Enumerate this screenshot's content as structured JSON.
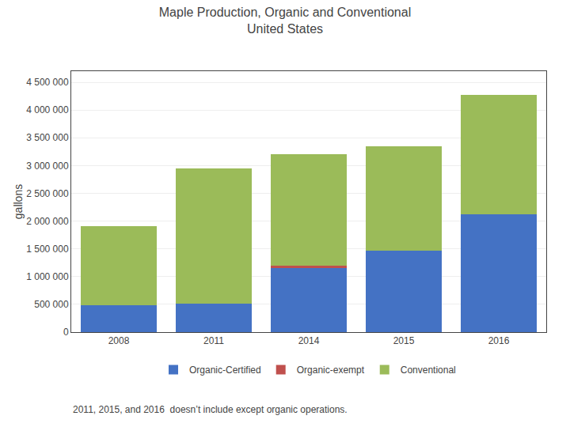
{
  "chart_data": {
    "type": "bar",
    "title": "Maple Production, Organic and Conventional\nUnited States",
    "categories": [
      "2008",
      "2011",
      "2014",
      "2015",
      "2016"
    ],
    "series": [
      {
        "name": "Organic-Certified",
        "color": "#4472C4",
        "values": [
          480000,
          510000,
          1150000,
          1470000,
          2120000
        ]
      },
      {
        "name": "Organic-exempt",
        "color": "#C0504D",
        "values": [
          0,
          0,
          50000,
          0,
          0
        ]
      },
      {
        "name": "Conventional",
        "color": "#9BBB59",
        "values": [
          1430000,
          2440000,
          2010000,
          1880000,
          2150000
        ]
      }
    ],
    "stacked": true,
    "ylabel": "gallons",
    "ylim": [
      0,
      4700000
    ],
    "yticks": [
      0,
      {
        "value": 500000,
        "label": "500 000"
      },
      {
        "value": 1000000,
        "label": "1 000 000"
      },
      {
        "value": 1500000,
        "label": "1 500 000"
      },
      {
        "value": 2000000,
        "label": "2 000 000"
      },
      {
        "value": 2500000,
        "label": "2 500 000"
      },
      {
        "value": 3000000,
        "label": "3 000 000"
      },
      {
        "value": 3500000,
        "label": "3 500 000"
      },
      {
        "value": 4000000,
        "label": "4 000 000"
      },
      {
        "value": 4500000,
        "label": "4 500 000"
      }
    ],
    "grid": true,
    "legend": "bottom",
    "annotations": [
      "2011, 2015, and 2016  doesn’t include except organic operations."
    ]
  }
}
